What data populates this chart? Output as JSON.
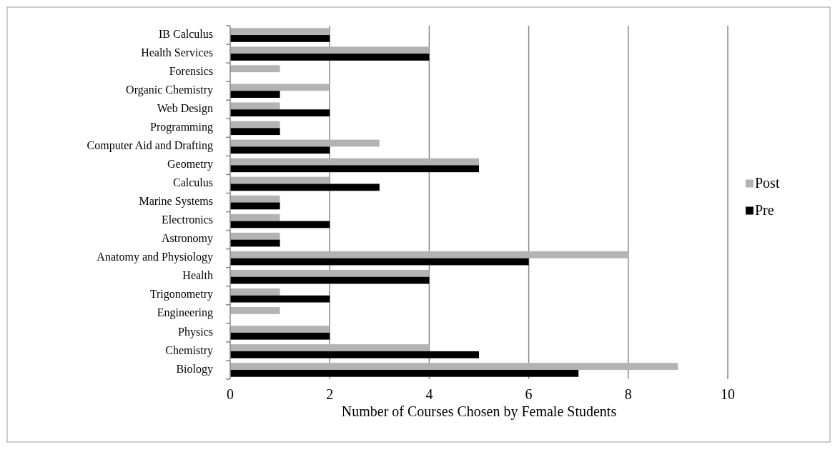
{
  "chart_data": {
    "type": "bar",
    "orientation": "horizontal",
    "xlabel": "Number of Courses Chosen by Female Students",
    "categories": [
      "IB Calculus",
      "Health Services",
      "Forensics",
      "Organic Chemistry",
      "Web Design",
      "Programming",
      "Computer Aid and Drafting",
      "Geometry",
      "Calculus",
      "Marine Systems",
      "Electronics",
      "Astronomy",
      "Anatomy and Physiology",
      "Health",
      "Trigonometry",
      "Engineering",
      "Physics",
      "Chemistry",
      "Biology"
    ],
    "series": [
      {
        "name": "Post",
        "color": "#b3b3b3",
        "values": [
          2,
          4,
          1,
          2,
          1,
          1,
          3,
          5,
          2,
          1,
          1,
          1,
          8,
          4,
          1,
          1,
          2,
          4,
          9
        ]
      },
      {
        "name": "Pre",
        "color": "#000000",
        "values": [
          2,
          4,
          0,
          1,
          2,
          1,
          2,
          5,
          3,
          1,
          2,
          1,
          6,
          4,
          2,
          0,
          2,
          5,
          7
        ]
      }
    ],
    "xlim": [
      0,
      10
    ],
    "xticks": [
      0,
      2,
      4,
      6,
      8,
      10
    ],
    "grid": "x",
    "legend": "right"
  }
}
